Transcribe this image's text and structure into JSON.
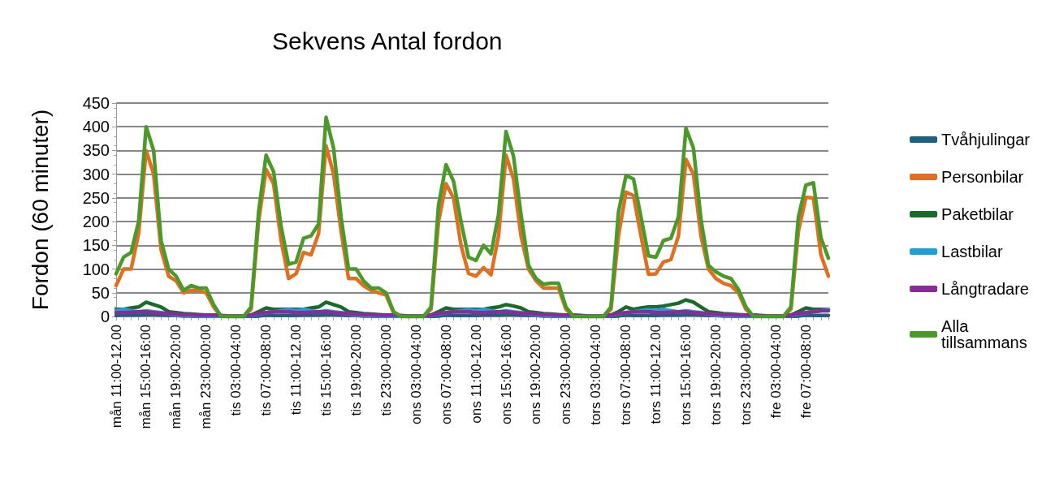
{
  "chart_data": {
    "type": "line",
    "title": "Sekvens Antal fordon",
    "ylabel": "Fordon (60 minuter)",
    "categories": [
      "mån 11:00-12.00",
      null,
      null,
      null,
      "mån 15:00-16:00",
      null,
      null,
      null,
      "mån 19:00-20:00",
      null,
      null,
      null,
      "mån 23:00-00:00",
      null,
      null,
      null,
      "tis 03:00-04:00",
      null,
      null,
      null,
      "tis 07:00-08:00",
      null,
      null,
      null,
      "tis 11:00-12.00",
      null,
      null,
      null,
      "tis 15:00-16:00",
      null,
      null,
      null,
      "tis 19:00-20:00",
      null,
      null,
      null,
      "tis 23:00-00:00",
      null,
      null,
      null,
      "ons 03:00-04:00",
      null,
      null,
      null,
      "ons 07:00-08:00",
      null,
      null,
      null,
      "ons 11:00-12.00",
      null,
      null,
      null,
      "ons 15:00-16:00",
      null,
      null,
      null,
      "ons 19:00-20:00",
      null,
      null,
      null,
      "ons 23:00-00:00",
      null,
      null,
      null,
      "tors 03:00-04:00",
      null,
      null,
      null,
      "tors 07:00-08:00",
      null,
      null,
      null,
      "tors 11:00-12.00",
      null,
      null,
      null,
      "tors 15:00-16:00",
      null,
      null,
      null,
      "tors 19:00-20:00",
      null,
      null,
      null,
      "tors 23:00-00:00",
      null,
      null,
      null,
      "fre 03:00-04:00",
      null,
      null,
      null,
      "fre 07:00-08:00",
      null,
      null,
      null
    ],
    "series": [
      {
        "name": "Tvåhjulingar",
        "color": "#1f5f7f",
        "values": [
          2,
          3,
          3,
          3,
          4,
          4,
          3,
          2,
          2,
          1,
          1,
          0,
          0,
          0,
          0,
          0,
          0,
          0,
          0,
          1,
          3,
          2,
          2,
          2,
          2,
          3,
          3,
          3,
          4,
          4,
          3,
          2,
          2,
          1,
          1,
          0,
          0,
          0,
          0,
          0,
          0,
          0,
          0,
          1,
          3,
          2,
          2,
          2,
          2,
          3,
          3,
          3,
          4,
          4,
          3,
          2,
          2,
          1,
          1,
          0,
          0,
          0,
          0,
          0,
          0,
          0,
          0,
          1,
          3,
          2,
          2,
          2,
          2,
          3,
          3,
          3,
          4,
          4,
          3,
          2,
          2,
          1,
          1,
          0,
          0,
          0,
          0,
          0,
          0,
          0,
          0,
          1,
          3,
          2,
          2,
          2
        ]
      },
      {
        "name": "Personbilar",
        "color": "#e07020",
        "values": [
          65,
          100,
          100,
          175,
          350,
          300,
          140,
          85,
          75,
          50,
          55,
          55,
          50,
          20,
          0,
          0,
          0,
          0,
          15,
          200,
          310,
          280,
          160,
          80,
          90,
          135,
          130,
          175,
          360,
          300,
          180,
          80,
          80,
          65,
          55,
          50,
          45,
          8,
          0,
          0,
          0,
          0,
          15,
          200,
          280,
          250,
          150,
          91,
          85,
          103,
          88,
          170,
          340,
          290,
          170,
          100,
          75,
          60,
          60,
          60,
          15,
          0,
          0,
          0,
          0,
          0,
          15,
          170,
          262,
          255,
          170,
          89,
          90,
          115,
          120,
          170,
          331,
          300,
          170,
          100,
          80,
          70,
          65,
          50,
          15,
          0,
          0,
          0,
          0,
          0,
          15,
          180,
          251,
          250,
          130,
          85
        ]
      },
      {
        "name": "Paketbilar",
        "color": "#1a6b2a",
        "values": [
          15,
          15,
          18,
          20,
          30,
          25,
          20,
          10,
          8,
          6,
          5,
          4,
          3,
          3,
          1,
          0,
          0,
          0,
          3,
          10,
          18,
          15,
          15,
          15,
          15,
          15,
          18,
          20,
          30,
          25,
          20,
          10,
          8,
          6,
          5,
          4,
          3,
          3,
          1,
          0,
          0,
          0,
          3,
          10,
          18,
          15,
          15,
          15,
          15,
          15,
          18,
          20,
          25,
          22,
          18,
          10,
          8,
          6,
          5,
          4,
          3,
          3,
          1,
          0,
          0,
          0,
          3,
          10,
          20,
          15,
          18,
          20,
          20,
          22,
          25,
          28,
          35,
          30,
          20,
          10,
          8,
          6,
          5,
          4,
          3,
          3,
          1,
          0,
          0,
          0,
          3,
          10,
          18,
          15,
          15,
          15
        ]
      },
      {
        "name": "Lastbilar",
        "color": "#1f9fd6",
        "values": [
          12,
          15,
          12,
          10,
          12,
          10,
          8,
          5,
          3,
          2,
          2,
          1,
          1,
          1,
          0,
          0,
          0,
          0,
          2,
          5,
          8,
          10,
          12,
          14,
          12,
          15,
          12,
          10,
          12,
          10,
          8,
          5,
          3,
          2,
          2,
          1,
          1,
          1,
          0,
          0,
          0,
          0,
          2,
          5,
          8,
          10,
          12,
          14,
          12,
          15,
          12,
          10,
          12,
          10,
          8,
          5,
          3,
          2,
          2,
          1,
          1,
          1,
          0,
          0,
          0,
          0,
          2,
          5,
          8,
          10,
          12,
          14,
          12,
          15,
          12,
          10,
          12,
          10,
          8,
          5,
          3,
          2,
          2,
          1,
          1,
          1,
          0,
          0,
          0,
          0,
          2,
          5,
          8,
          10,
          12,
          15
        ]
      },
      {
        "name": "Långtradare",
        "color": "#8b2b9a",
        "values": [
          8,
          8,
          9,
          10,
          10,
          8,
          7,
          6,
          5,
          4,
          4,
          3,
          3,
          3,
          2,
          1,
          1,
          1,
          3,
          6,
          8,
          10,
          10,
          10,
          8,
          8,
          9,
          10,
          10,
          8,
          7,
          6,
          5,
          4,
          4,
          3,
          3,
          3,
          2,
          1,
          1,
          1,
          3,
          6,
          8,
          10,
          10,
          10,
          8,
          8,
          9,
          10,
          10,
          8,
          7,
          6,
          5,
          4,
          4,
          3,
          3,
          3,
          2,
          1,
          1,
          1,
          3,
          6,
          8,
          10,
          10,
          10,
          8,
          8,
          9,
          10,
          10,
          8,
          7,
          6,
          5,
          4,
          4,
          3,
          3,
          3,
          2,
          1,
          1,
          1,
          3,
          6,
          8,
          10,
          12,
          12
        ]
      },
      {
        "name": "Alla tillsammans",
        "color": "#4a9a2a",
        "values": [
          90,
          125,
          135,
          200,
          400,
          350,
          160,
          100,
          85,
          55,
          65,
          60,
          60,
          25,
          0,
          0,
          0,
          0,
          20,
          220,
          340,
          305,
          190,
          110,
          115,
          165,
          170,
          195,
          420,
          355,
          210,
          100,
          100,
          75,
          60,
          60,
          50,
          10,
          0,
          0,
          0,
          0,
          20,
          235,
          320,
          285,
          200,
          125,
          118,
          150,
          132,
          215,
          390,
          338,
          215,
          108,
          80,
          68,
          70,
          70,
          20,
          0,
          0,
          0,
          0,
          0,
          20,
          220,
          297,
          290,
          210,
          128,
          125,
          160,
          165,
          210,
          397,
          355,
          205,
          108,
          94,
          85,
          80,
          57,
          20,
          0,
          0,
          0,
          0,
          0,
          20,
          210,
          277,
          282,
          166,
          123
        ]
      }
    ],
    "ylim": [
      0,
      450
    ],
    "yticks": [
      0,
      50,
      100,
      150,
      200,
      250,
      300,
      350,
      400,
      450
    ],
    "grid": "y",
    "legend": "right",
    "marker": "none",
    "line_style": "solid"
  }
}
